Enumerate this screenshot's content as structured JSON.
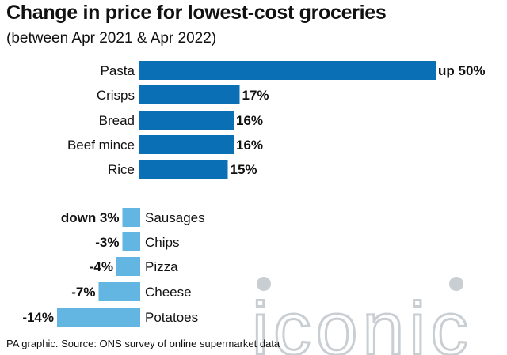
{
  "header": {
    "title": "Change in price for lowest-cost groceries",
    "subtitle": "(between Apr 2021 & Apr 2022)"
  },
  "colors": {
    "increase": "#0a6fb5",
    "decrease": "#63b5e2",
    "text": "#111111",
    "watermark": "#c9ced3"
  },
  "chart_data": {
    "type": "bar",
    "orientation": "horizontal",
    "title": "Change in price for lowest-cost groceries",
    "subtitle": "(between Apr 2021 & Apr 2022)",
    "unit": "%",
    "groups": [
      {
        "name": "increase",
        "categories": [
          "Pasta",
          "Crisps",
          "Bread",
          "Beef mince",
          "Rice"
        ],
        "values": [
          50,
          17,
          16,
          16,
          15
        ],
        "value_labels": [
          "up 50%",
          "17%",
          "16%",
          "16%",
          "15%"
        ]
      },
      {
        "name": "decrease",
        "categories": [
          "Sausages",
          "Chips",
          "Pizza",
          "Cheese",
          "Potatoes"
        ],
        "values": [
          -3,
          -3,
          -4,
          -7,
          -14
        ],
        "value_labels": [
          "down 3%",
          "-3%",
          "-4%",
          "-7%",
          "-14%"
        ]
      }
    ]
  },
  "watermark": {
    "text": "iconic"
  },
  "footer": {
    "source": "PA graphic. Source: ONS survey of online supermarket data"
  }
}
